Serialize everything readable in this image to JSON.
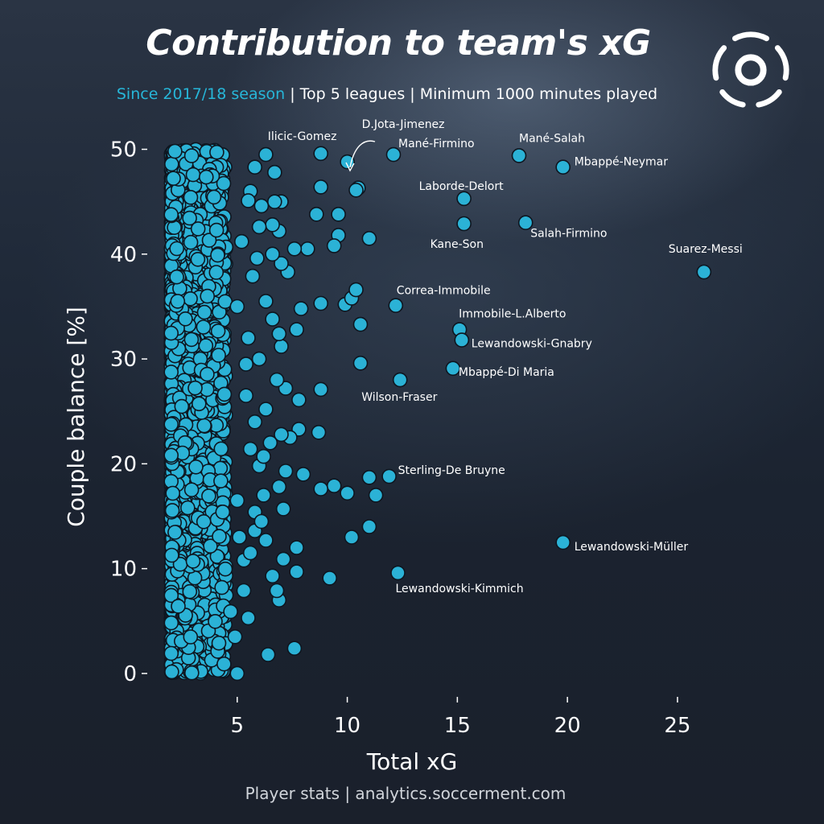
{
  "header": {
    "title": "Contribution to team's xG",
    "subtitle_highlight": "Since 2017/18 season",
    "subtitle_rest": " | Top 5 leagues | Minimum 1000 minutes played"
  },
  "footer": {
    "text": "Player stats | analytics.soccerment.com"
  },
  "logo": {
    "icon": "soccerment-logo-icon",
    "color": "#ffffff"
  },
  "colors": {
    "point": "#2bb2d6",
    "highlight": "#27b6d8",
    "background": "#1b2332"
  },
  "chart_data": {
    "type": "scatter",
    "xlabel": "Total xG",
    "ylabel": "Couple balance [%]",
    "xlim": [
      0,
      28
    ],
    "ylim": [
      -3,
      51.5
    ],
    "xticks": [
      5,
      10,
      15,
      20,
      25
    ],
    "yticks": [
      0,
      10,
      20,
      30,
      40,
      50
    ],
    "grid": false,
    "dense_cluster": {
      "x_range": [
        2.0,
        4.5
      ],
      "y_range": [
        0,
        50
      ],
      "approx_count": 2000
    },
    "points": [
      {
        "x": 26.2,
        "y": 38.3,
        "label": "Suarez-Messi"
      },
      {
        "x": 19.8,
        "y": 48.3,
        "label": "Mbappé-Neymar"
      },
      {
        "x": 17.8,
        "y": 49.4,
        "label": "Mané-Salah"
      },
      {
        "x": 19.8,
        "y": 12.5,
        "label": "Lewandowski-Müller"
      },
      {
        "x": 18.1,
        "y": 43.0,
        "label": "Salah-Firmino"
      },
      {
        "x": 15.3,
        "y": 45.3,
        "label": "Laborde-Delort"
      },
      {
        "x": 15.3,
        "y": 42.9,
        "label": "Kane-Son"
      },
      {
        "x": 12.1,
        "y": 49.5,
        "label": "Mané-Firmino"
      },
      {
        "x": 10.0,
        "y": 48.8,
        "label": "D.Jota-Jimenez"
      },
      {
        "x": 8.8,
        "y": 49.6,
        "label": "Ilicic-Gomez"
      },
      {
        "x": 12.2,
        "y": 35.1,
        "label": "Correa-Immobile"
      },
      {
        "x": 15.1,
        "y": 32.8,
        "label": "Immobile-L.Alberto"
      },
      {
        "x": 15.2,
        "y": 31.8,
        "label": "Lewandowski-Gnabry"
      },
      {
        "x": 14.8,
        "y": 29.1,
        "label": "Mbappé-Di Maria"
      },
      {
        "x": 12.4,
        "y": 28.0,
        "label": "Wilson-Fraser"
      },
      {
        "x": 11.9,
        "y": 18.8,
        "label": "Sterling-De Bruyne"
      },
      {
        "x": 12.3,
        "y": 9.6,
        "label": "Lewandowski-Kimmich"
      },
      {
        "x": 11.0,
        "y": 18.7
      },
      {
        "x": 11.3,
        "y": 17.0
      },
      {
        "x": 10.0,
        "y": 17.2
      },
      {
        "x": 9.4,
        "y": 17.9
      },
      {
        "x": 8.8,
        "y": 17.6
      },
      {
        "x": 11.0,
        "y": 14.0
      },
      {
        "x": 10.2,
        "y": 13.0
      },
      {
        "x": 9.2,
        "y": 9.1
      },
      {
        "x": 7.6,
        "y": 2.4
      },
      {
        "x": 6.4,
        "y": 1.8
      },
      {
        "x": 5.0,
        "y": 0.0
      },
      {
        "x": 7.7,
        "y": 12.0
      },
      {
        "x": 7.7,
        "y": 9.7
      },
      {
        "x": 7.1,
        "y": 10.9
      },
      {
        "x": 6.6,
        "y": 9.3
      },
      {
        "x": 6.9,
        "y": 7.0
      },
      {
        "x": 6.8,
        "y": 7.9
      },
      {
        "x": 6.3,
        "y": 12.7
      },
      {
        "x": 5.8,
        "y": 13.6
      },
      {
        "x": 7.1,
        "y": 15.7
      },
      {
        "x": 6.2,
        "y": 17.0
      },
      {
        "x": 5.8,
        "y": 15.4
      },
      {
        "x": 8.0,
        "y": 19.0
      },
      {
        "x": 7.2,
        "y": 19.3
      },
      {
        "x": 8.7,
        "y": 23.0
      },
      {
        "x": 7.8,
        "y": 23.3
      },
      {
        "x": 7.4,
        "y": 22.5
      },
      {
        "x": 7.0,
        "y": 22.8
      },
      {
        "x": 8.8,
        "y": 27.1
      },
      {
        "x": 7.8,
        "y": 26.1
      },
      {
        "x": 7.2,
        "y": 27.2
      },
      {
        "x": 10.6,
        "y": 29.6
      },
      {
        "x": 10.6,
        "y": 33.3
      },
      {
        "x": 9.9,
        "y": 35.2
      },
      {
        "x": 10.2,
        "y": 35.8
      },
      {
        "x": 8.8,
        "y": 35.3
      },
      {
        "x": 7.9,
        "y": 34.8
      },
      {
        "x": 10.4,
        "y": 36.6
      },
      {
        "x": 7.7,
        "y": 32.8
      },
      {
        "x": 7.0,
        "y": 31.2
      },
      {
        "x": 6.9,
        "y": 32.4
      },
      {
        "x": 11.0,
        "y": 41.5
      },
      {
        "x": 9.6,
        "y": 41.8
      },
      {
        "x": 9.4,
        "y": 40.8
      },
      {
        "x": 8.2,
        "y": 40.5
      },
      {
        "x": 7.6,
        "y": 40.5
      },
      {
        "x": 7.3,
        "y": 38.3
      },
      {
        "x": 7.0,
        "y": 39.1
      },
      {
        "x": 6.6,
        "y": 40.0
      },
      {
        "x": 9.6,
        "y": 43.8
      },
      {
        "x": 8.6,
        "y": 43.8
      },
      {
        "x": 6.9,
        "y": 42.2
      },
      {
        "x": 6.6,
        "y": 42.8
      },
      {
        "x": 6.0,
        "y": 42.6
      },
      {
        "x": 10.5,
        "y": 46.3
      },
      {
        "x": 10.4,
        "y": 46.1
      },
      {
        "x": 8.8,
        "y": 46.4
      },
      {
        "x": 7.0,
        "y": 45.0
      },
      {
        "x": 6.7,
        "y": 45.0
      },
      {
        "x": 6.1,
        "y": 44.6
      },
      {
        "x": 6.7,
        "y": 47.8
      },
      {
        "x": 6.3,
        "y": 49.5
      },
      {
        "x": 5.8,
        "y": 48.3
      },
      {
        "x": 5.6,
        "y": 46.0
      },
      {
        "x": 5.5,
        "y": 45.1
      },
      {
        "x": 5.5,
        "y": 5.3
      },
      {
        "x": 5.3,
        "y": 7.9
      },
      {
        "x": 5.3,
        "y": 10.8
      },
      {
        "x": 4.9,
        "y": 3.5
      },
      {
        "x": 4.4,
        "y": 0.9
      },
      {
        "x": 4.7,
        "y": 5.9
      },
      {
        "x": 6.3,
        "y": 35.5
      },
      {
        "x": 6.6,
        "y": 33.8
      },
      {
        "x": 6.0,
        "y": 30.0
      },
      {
        "x": 6.8,
        "y": 28.0
      },
      {
        "x": 6.3,
        "y": 25.2
      },
      {
        "x": 6.5,
        "y": 22.0
      },
      {
        "x": 6.9,
        "y": 17.8
      },
      {
        "x": 6.0,
        "y": 19.8
      },
      {
        "x": 5.8,
        "y": 24.0
      },
      {
        "x": 5.6,
        "y": 21.4
      },
      {
        "x": 6.2,
        "y": 20.7
      },
      {
        "x": 5.4,
        "y": 26.5
      },
      {
        "x": 5.5,
        "y": 32.0
      },
      {
        "x": 5.7,
        "y": 37.9
      },
      {
        "x": 5.9,
        "y": 39.6
      },
      {
        "x": 5.2,
        "y": 41.2
      },
      {
        "x": 5.1,
        "y": 13.0
      },
      {
        "x": 5.6,
        "y": 11.5
      },
      {
        "x": 5.0,
        "y": 16.5
      },
      {
        "x": 6.1,
        "y": 14.5
      },
      {
        "x": 5.4,
        "y": 29.5
      },
      {
        "x": 5.0,
        "y": 35.0
      }
    ]
  }
}
